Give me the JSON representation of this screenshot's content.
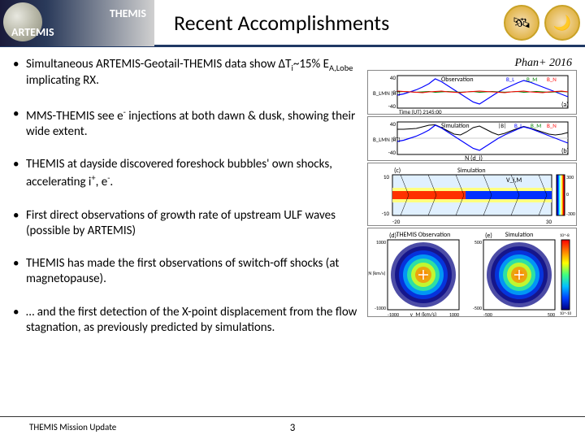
{
  "header": {
    "mission1": "THEMIS",
    "mission2": "ARTEMIS",
    "title": "Recent Accomplishments"
  },
  "citation": "Phan+ 2016",
  "bullets": [
    {
      "html": "Simultaneous ARTEMIS-Geotail-THEMIS data show ΔT<span class='sub'>i</span>~15% E<span class='sub'>A,Lobe</span> implicating RX."
    },
    {
      "html": "MMS-THEMIS see e<span class='sup'>-</span> injections at both dawn & dusk, showing their wide extent."
    },
    {
      "html": "THEMIS at dayside discovered foreshock bubbles' own shocks, accelerating i<span class='sup'>+</span>, e<span class='sup'>-</span>."
    },
    {
      "html": "First direct observations of growth rate of upstream ULF waves (possible by ARTEMIS)"
    },
    {
      "html": "THEMIS has made the first observations of switch-off shocks (at magnetopause)."
    },
    {
      "html": "… and the first detection of the X-point displacement from the flow stagnation, as previously predicted by simulations."
    }
  ],
  "panels": {
    "a": {
      "label": "(a)",
      "title": "Observation",
      "ylabel": "B_LMN (nT)",
      "ylim": [
        -40,
        40
      ],
      "legend": [
        "B_L",
        "B_M",
        "B_N"
      ],
      "legend_colors": [
        "#0000ff",
        "#008000",
        "#ff0000"
      ],
      "series_BL": [
        -8,
        -5,
        0,
        5,
        12,
        20,
        32,
        25,
        15,
        5,
        -5,
        -15,
        -25,
        -30,
        -20,
        -10,
        0,
        8,
        15,
        22,
        28,
        24,
        18,
        12,
        6,
        0,
        -6,
        -12
      ],
      "series_BM": [
        0,
        1,
        0,
        -1,
        0,
        1,
        -1,
        0,
        1,
        0,
        -1,
        0,
        1,
        -1,
        0,
        1,
        0,
        -1,
        0,
        1,
        -1,
        0,
        1,
        0,
        -1,
        0,
        1,
        0
      ],
      "series_BN": [
        2,
        1,
        0,
        -1,
        -2,
        0,
        1,
        2,
        0,
        -1,
        -2,
        0,
        1,
        2,
        1,
        0,
        -1,
        -2,
        0,
        1,
        2,
        0,
        -1,
        -2,
        0,
        1,
        2,
        0
      ],
      "xlabel": "Time (UT)",
      "xstart": "2145:00"
    },
    "b": {
      "label": "(b)",
      "title": "Simulation",
      "ylabel": "B_LMN (nT)",
      "ylim": [
        -40,
        40
      ],
      "legend": [
        "|B|",
        "B_L",
        "B_M",
        "B_N"
      ],
      "legend_colors": [
        "#000000",
        "#0000ff",
        "#008000",
        "#ff0000"
      ],
      "series_mag": [
        22,
        22,
        23,
        24,
        28,
        32,
        33,
        26,
        18,
        10,
        8,
        16,
        26,
        30,
        22,
        14,
        8,
        12,
        18,
        24,
        29,
        25,
        20,
        15,
        10,
        8,
        10,
        14
      ],
      "series_BL": [
        -8,
        -5,
        0,
        5,
        12,
        20,
        32,
        25,
        15,
        5,
        -5,
        -15,
        -25,
        -30,
        -20,
        -10,
        0,
        8,
        15,
        22,
        28,
        24,
        18,
        12,
        6,
        0,
        -6,
        -12
      ],
      "xlabel": "N (d_i)"
    },
    "c": {
      "label": "(c)",
      "title": "Simulation",
      "sublabel": "V_i,M",
      "xlim": [
        -20,
        30
      ],
      "ylim": [
        -10,
        10
      ],
      "colorbar": [
        -300,
        300
      ],
      "cmap_colors": [
        "#00007f",
        "#0000ff",
        "#00ffff",
        "#ffffff",
        "#ffff00",
        "#ff0000",
        "#7f0000"
      ]
    },
    "d": {
      "label": "(d)",
      "title": "THEMIS Observation",
      "xlabel": "v_M (km/s)",
      "ylabel": "v_N (km/s)",
      "xlim": [
        -1000,
        1000
      ],
      "ylim": [
        -1000,
        1000
      ],
      "colorbar_range": [
        "10^-10",
        "10^-8"
      ],
      "cmap": [
        "#000080",
        "#0040ff",
        "#00c0ff",
        "#40ff80",
        "#ffff00",
        "#ff8000",
        "#ff0000"
      ]
    },
    "e": {
      "label": "(e)",
      "title": "Simulation",
      "xlim": [
        -500,
        500
      ],
      "ylim": [
        -500,
        500
      ],
      "colorbar_range": [
        "10^-10",
        "10^-8"
      ],
      "cmap": [
        "#000080",
        "#0040ff",
        "#00c0ff",
        "#40ff80",
        "#ffff00",
        "#ff8000",
        "#ff0000"
      ]
    }
  },
  "footer": {
    "left": "THEMIS Mission Update",
    "page": "3"
  },
  "colors": {
    "header_rule": "#1f3864",
    "badge_border": "#c9a227"
  }
}
